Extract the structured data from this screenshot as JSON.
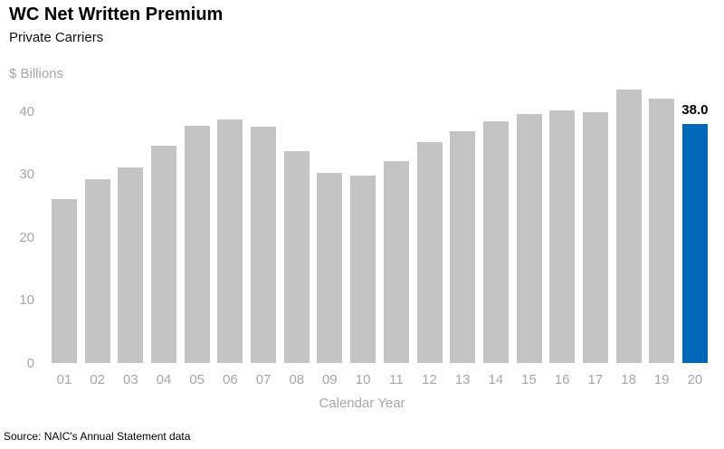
{
  "header": {
    "title": "WC Net Written Premium",
    "subtitle": "Private Carriers",
    "units_label": "$ Billions"
  },
  "chart_data": {
    "type": "bar",
    "title": "WC Net Written Premium",
    "subtitle": "Private Carriers",
    "categories": [
      "01",
      "02",
      "03",
      "04",
      "05",
      "06",
      "07",
      "08",
      "09",
      "10",
      "11",
      "12",
      "13",
      "14",
      "15",
      "16",
      "17",
      "18",
      "19",
      "20"
    ],
    "values": [
      26.1,
      29.2,
      31.1,
      34.6,
      37.8,
      38.7,
      37.6,
      33.7,
      30.3,
      29.9,
      32.2,
      35.1,
      36.9,
      38.5,
      39.7,
      40.2,
      39.9,
      43.5,
      42.1,
      38.0
    ],
    "highlight_index": 19,
    "highlight_label": "38.0",
    "xlabel": "Calendar Year",
    "ylabel": "$ Billions",
    "y_ticks": [
      0,
      10,
      20,
      30,
      40
    ],
    "ylim": [
      0,
      44
    ],
    "grid": false,
    "legend": "none",
    "bar_color": "#C4C4C4",
    "highlight_color": "#0067B9",
    "axis_text_color": "#A6A6A6",
    "data_label_color": "#000000"
  },
  "footer": {
    "source": "Source: NAIC's Annual Statement data"
  }
}
